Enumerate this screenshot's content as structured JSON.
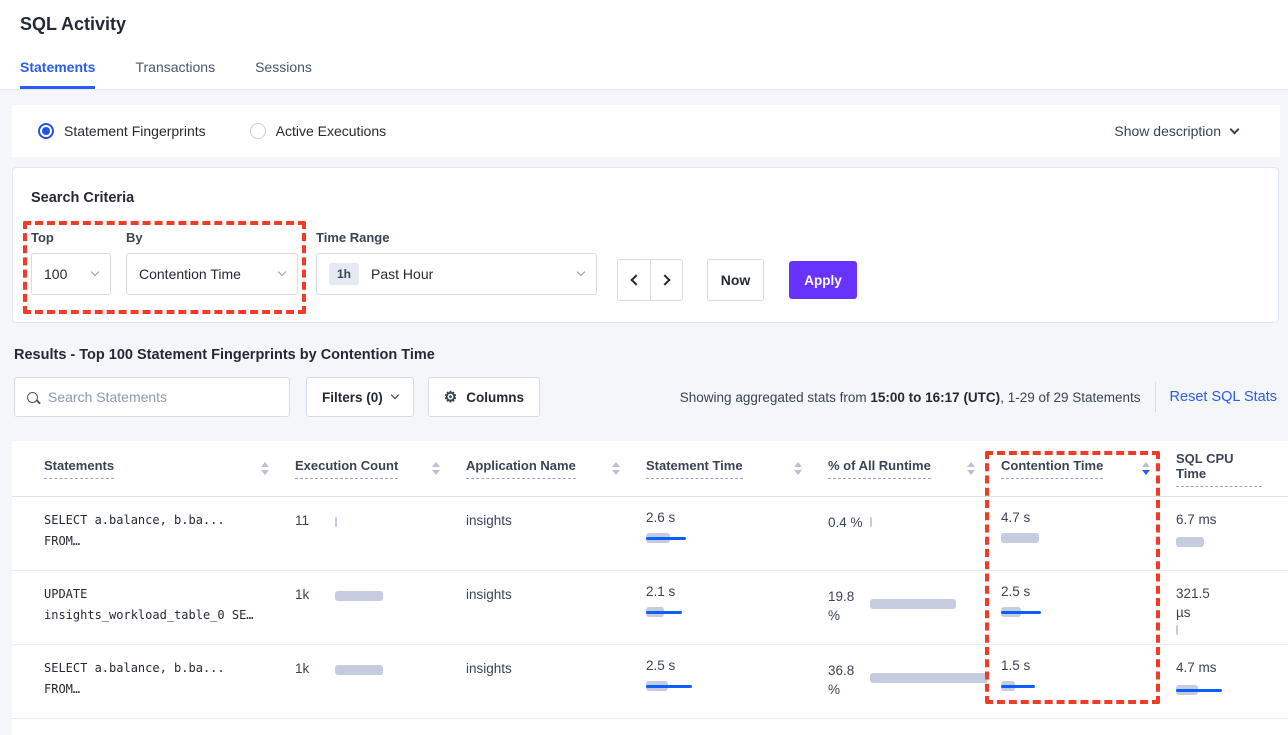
{
  "page_title": "SQL Activity",
  "tabs": [
    {
      "label": "Statements"
    },
    {
      "label": "Transactions"
    },
    {
      "label": "Sessions"
    }
  ],
  "mode_bar": {
    "options": [
      {
        "label": "Statement Fingerprints",
        "selected": true
      },
      {
        "label": "Active Executions",
        "selected": false
      }
    ],
    "show_description_label": "Show description"
  },
  "search_criteria": {
    "heading": "Search Criteria",
    "top_label": "Top",
    "top_value": "100",
    "by_label": "By",
    "by_value": "Contention Time",
    "time_range_label": "Time Range",
    "time_range_badge": "1h",
    "time_range_value": "Past Hour",
    "now_label": "Now",
    "apply_label": "Apply"
  },
  "results": {
    "heading": "Results - Top 100 Statement Fingerprints by Contention Time",
    "search_placeholder": "Search Statements",
    "filters_label": "Filters (0)",
    "columns_label": "Columns",
    "stats_prefix": "Showing aggregated stats from ",
    "stats_range": "15:00 to 16:17 (UTC)",
    "stats_suffix": ", 1-29 of 29 Statements",
    "reset_label": "Reset SQL Stats"
  },
  "table": {
    "headers": {
      "statements": "Statements",
      "execution_count": "Execution Count",
      "application_name": "Application Name",
      "statement_time": "Statement Time",
      "pct_runtime": "% of All Runtime",
      "contention_time": "Contention Time",
      "sql_cpu_time": "SQL CPU Time"
    },
    "sort": {
      "column": "Contention Time",
      "direction": "desc"
    },
    "rows": [
      {
        "statement_line1": "SELECT a.balance, b.ba...",
        "statement_line2": "FROM…",
        "execution_count": "11",
        "application": "insights",
        "statement_time": "2.6 s",
        "pct_runtime": "0.4 %",
        "contention_time": "4.7 s",
        "sql_cpu": "6.7 ms",
        "bars": {
          "exec": {
            "gray": 2,
            "blue": 0
          },
          "stmt": {
            "gray": 24,
            "blue": 40
          },
          "pct": {
            "gray": 2,
            "blue": 0
          },
          "cont": {
            "gray": 38,
            "blue": 0
          },
          "cpu": {
            "gray": 28,
            "blue": 0
          }
        }
      },
      {
        "statement_line1": "UPDATE",
        "statement_line2": "insights_workload_table_0 SE…",
        "execution_count": "1k",
        "application": "insights",
        "statement_time": "2.1 s",
        "pct_runtime": "19.8 %",
        "contention_time": "2.5 s",
        "sql_cpu": "321.5 µs",
        "bars": {
          "exec": {
            "gray": 48,
            "blue": 0
          },
          "stmt": {
            "gray": 18,
            "blue": 36
          },
          "pct": {
            "gray": 86,
            "blue": 0
          },
          "cont": {
            "gray": 20,
            "blue": 40
          },
          "cpu": {
            "gray": 2,
            "blue": 0
          }
        }
      },
      {
        "statement_line1": "SELECT a.balance, b.ba...",
        "statement_line2": "FROM…",
        "execution_count": "1k",
        "application": "insights",
        "statement_time": "2.5 s",
        "pct_runtime": "36.8 %",
        "contention_time": "1.5 s",
        "sql_cpu": "4.7 ms",
        "bars": {
          "exec": {
            "gray": 48,
            "blue": 0
          },
          "stmt": {
            "gray": 22,
            "blue": 46
          },
          "pct": {
            "gray": 118,
            "blue": 0
          },
          "cont": {
            "gray": 14,
            "blue": 34
          },
          "cpu": {
            "gray": 22,
            "blue": 46
          }
        }
      }
    ]
  },
  "colors": {
    "accent_blue": "#2b5cf0",
    "apply_purple": "#6933ff",
    "bar_gray": "#c6cce0",
    "bar_blue": "#0b5fff",
    "annotation_red": "#f23b26"
  }
}
